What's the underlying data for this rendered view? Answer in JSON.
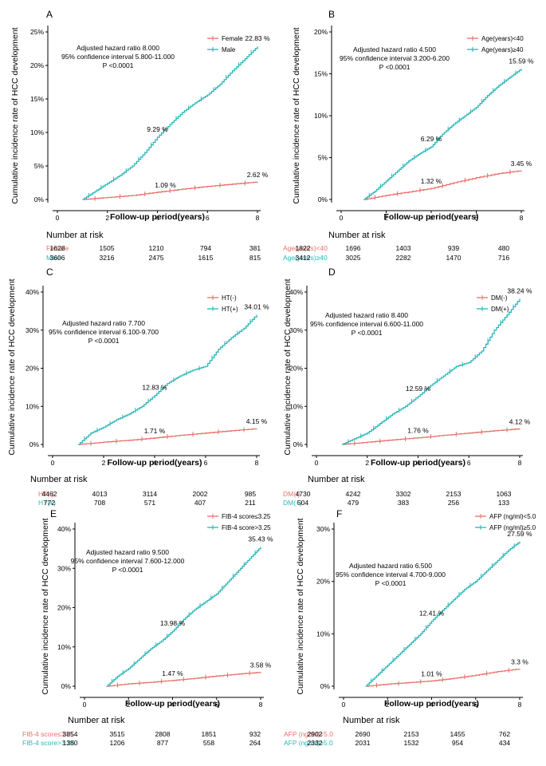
{
  "colors": {
    "series1": "#e8706a",
    "series2": "#2bb5b8",
    "axis": "#000000"
  },
  "chart_data": [
    {
      "type": "line",
      "panel_label": "A",
      "xlabel": "Follow-up period(years)",
      "ylabel": "Cumulative incidence rate of HCC development",
      "xlim": [
        0,
        8
      ],
      "ylim": [
        0,
        25
      ],
      "xticks": [
        "0",
        "2",
        "4",
        "6",
        "8"
      ],
      "yticks": [
        "0%",
        "5%",
        "10%",
        "15%",
        "20%",
        "25%"
      ],
      "annotation": [
        "Adjusted hazard ratio 8.000",
        "95% confidence interval 5.800-11.000",
        "P <0.0001"
      ],
      "series": [
        {
          "name": "Female",
          "x": [
            1,
            2,
            3,
            4,
            5,
            6,
            7,
            8
          ],
          "values": [
            0,
            0.3,
            0.6,
            1.09,
            1.55,
            1.95,
            2.3,
            2.62
          ],
          "label_mid": "1.09 %",
          "label_end": "2.62 %"
        },
        {
          "name": "Male",
          "x": [
            1,
            1.5,
            2,
            2.5,
            3,
            3.5,
            4,
            4.5,
            5,
            5.5,
            6,
            6.5,
            7,
            7.5,
            8
          ],
          "values": [
            0,
            1.2,
            2.4,
            3.6,
            5.0,
            7.0,
            9.29,
            11.2,
            13.0,
            14.4,
            15.6,
            17.2,
            19.2,
            21.0,
            22.83
          ],
          "label_mid": "9.29 %",
          "label_end": "22.83 %"
        }
      ],
      "risk_table": {
        "title": "Number at risk",
        "rows": [
          {
            "name": "Female",
            "values": [
              "1628",
              "1505",
              "1210",
              "794",
              "381"
            ]
          },
          {
            "name": "Male",
            "values": [
              "3606",
              "3216",
              "2475",
              "1615",
              "815"
            ]
          }
        ]
      }
    },
    {
      "type": "line",
      "panel_label": "B",
      "xlabel": "Follow-up period(years)",
      "ylabel": "Cumulative incidence rate of HCC development",
      "xlim": [
        0,
        8
      ],
      "ylim": [
        0,
        20
      ],
      "xticks": [
        "0",
        "2",
        "4",
        "6",
        "8"
      ],
      "yticks": [
        "0%",
        "5%",
        "10%",
        "15%",
        "20%"
      ],
      "annotation": [
        "Adjusted hazard ratio 4.500",
        "95% confidence interval 3.200-6.200",
        "P <0.0001"
      ],
      "series": [
        {
          "name": "Age(years)<40",
          "x": [
            1,
            2,
            3,
            4,
            5,
            6,
            7,
            8
          ],
          "values": [
            0,
            0.5,
            0.9,
            1.32,
            2.0,
            2.6,
            3.1,
            3.45
          ],
          "label_mid": "1.32 %",
          "label_end": "3.45 %"
        },
        {
          "name": "Age(years)≥40",
          "x": [
            1,
            1.5,
            2,
            2.5,
            3,
            3.5,
            4,
            4.5,
            5,
            5.5,
            6,
            6.5,
            7,
            7.5,
            8
          ],
          "values": [
            0,
            1.0,
            2.2,
            3.4,
            4.6,
            5.5,
            6.29,
            7.8,
            9.0,
            10.0,
            11.0,
            12.4,
            13.6,
            14.6,
            15.59
          ],
          "label_mid": "6.29 %",
          "label_end": "15.59 %"
        }
      ],
      "risk_table": {
        "title": "Number at risk",
        "rows": [
          {
            "name": "Age(years)<40",
            "values": [
              "1822",
              "1696",
              "1403",
              "939",
              "480"
            ]
          },
          {
            "name": "Age(years)≥40",
            "values": [
              "3412",
              "3025",
              "2282",
              "1470",
              "716"
            ]
          }
        ]
      }
    },
    {
      "type": "line",
      "panel_label": "C",
      "xlabel": "Follow-up period(years)",
      "ylabel": "Cumulative incidence rate of HCC development",
      "xlim": [
        0,
        8
      ],
      "ylim": [
        0,
        40
      ],
      "xticks": [
        "0",
        "2",
        "4",
        "6",
        "8"
      ],
      "yticks": [
        "0%",
        "10%",
        "20%",
        "30%",
        "40%"
      ],
      "annotation": [
        "Adjusted hazard ratio 7.700",
        "95% confidence interval 6.100-9.700",
        "P <0.0001"
      ],
      "series": [
        {
          "name": "HT(-)",
          "x": [
            1,
            2,
            3,
            4,
            5,
            6,
            7,
            8
          ],
          "values": [
            0,
            0.6,
            1.1,
            1.71,
            2.4,
            3.0,
            3.6,
            4.15
          ],
          "label_mid": "1.71 %",
          "label_end": "4.15 %"
        },
        {
          "name": "HT(+)",
          "x": [
            1,
            1.5,
            2,
            2.5,
            3,
            3.5,
            4,
            4.5,
            5,
            5.5,
            6,
            6.5,
            7,
            7.5,
            8
          ],
          "values": [
            0,
            3.0,
            4.5,
            6.5,
            8.0,
            10.0,
            12.83,
            16.0,
            18.0,
            19.5,
            20.5,
            25.0,
            28.0,
            30.5,
            34.01
          ],
          "label_mid": "12.83 %",
          "label_end": "34.01 %"
        }
      ],
      "risk_table": {
        "title": "Number at risk",
        "rows": [
          {
            "name": "HT(-)",
            "values": [
              "4462",
              "4013",
              "3114",
              "2002",
              "985"
            ]
          },
          {
            "name": "HT(+)",
            "values": [
              "772",
              "708",
              "571",
              "407",
              "211"
            ]
          }
        ]
      }
    },
    {
      "type": "line",
      "panel_label": "D",
      "xlabel": "Follow-up period(years)",
      "ylabel": "Cumulative incidence rate of HCC development",
      "xlim": [
        0,
        8
      ],
      "ylim": [
        0,
        40
      ],
      "xticks": [
        "0",
        "2",
        "4",
        "6",
        "8"
      ],
      "yticks": [
        "0%",
        "10%",
        "20%",
        "30%",
        "40%"
      ],
      "annotation": [
        "Adjusted hazard ratio 8.400",
        "95% confidence interval 6.600-11.000",
        "P <0.0001"
      ],
      "series": [
        {
          "name": "DM(-)",
          "x": [
            1,
            2,
            3,
            4,
            5,
            6,
            7,
            8
          ],
          "values": [
            0,
            0.6,
            1.2,
            1.76,
            2.4,
            3.0,
            3.6,
            4.12
          ],
          "label_mid": "1.76 %",
          "label_end": "4.12 %"
        },
        {
          "name": "DM(+)",
          "x": [
            1,
            1.5,
            2,
            2.5,
            3,
            3.5,
            4,
            4.5,
            5,
            5.5,
            6,
            6.5,
            7,
            7.5,
            8
          ],
          "values": [
            0,
            1.5,
            3.0,
            5.5,
            8.0,
            10.0,
            12.59,
            15.5,
            18.0,
            20.5,
            21.5,
            24.5,
            30.0,
            34.0,
            38.24
          ],
          "label_mid": "12.59 %",
          "label_end": "38.24 %"
        }
      ],
      "risk_table": {
        "title": "Number at risk",
        "rows": [
          {
            "name": "DM(-)",
            "values": [
              "4730",
              "4242",
              "3302",
              "2153",
              "1063"
            ]
          },
          {
            "name": "DM(+)",
            "values": [
              "504",
              "479",
              "383",
              "256",
              "133"
            ]
          }
        ]
      }
    },
    {
      "type": "line",
      "panel_label": "E",
      "xlabel": "Follow-up period(years)",
      "ylabel": "Cumulative incidence rate of HCC development",
      "xlim": [
        0,
        8
      ],
      "ylim": [
        0,
        40
      ],
      "xticks": [
        "0",
        "2",
        "4",
        "6",
        "8"
      ],
      "yticks": [
        "0%",
        "10%",
        "20%",
        "30%",
        "40%"
      ],
      "annotation": [
        "Adjusted hazard ratio 9.500",
        "95% confidence interval 7.600-12.000",
        "P <0.0001"
      ],
      "series": [
        {
          "name": "FIB-4 score≤3.25",
          "x": [
            1,
            2,
            3,
            4,
            5,
            6,
            7,
            8
          ],
          "values": [
            0,
            0.6,
            1.0,
            1.47,
            2.0,
            2.6,
            3.1,
            3.58
          ],
          "label_mid": "1.47 %",
          "label_end": "3.58 %"
        },
        {
          "name": "FIB-4 score>3.25",
          "x": [
            1,
            1.5,
            2,
            2.5,
            3,
            3.5,
            4,
            4.5,
            5,
            5.5,
            6,
            6.5,
            7,
            7.5,
            8
          ],
          "values": [
            0,
            2.5,
            4.5,
            7.0,
            9.5,
            11.5,
            13.98,
            17.0,
            19.5,
            21.5,
            23.5,
            26.5,
            29.5,
            32.5,
            35.43
          ],
          "label_mid": "13.98 %",
          "label_end": "35.43 %"
        }
      ],
      "risk_table": {
        "title": "Number at risk",
        "rows": [
          {
            "name": "FIB-4 score≤3.25",
            "values": [
              "3854",
              "3515",
              "2808",
              "1851",
              "932"
            ]
          },
          {
            "name": "FIB-4 score>3.25",
            "values": [
              "1380",
              "1206",
              "877",
              "558",
              "264"
            ]
          }
        ]
      }
    },
    {
      "type": "line",
      "panel_label": "F",
      "xlabel": "Follow-up period(years)",
      "ylabel": "Cumulative incidence rate of HCC development",
      "xlim": [
        0,
        8
      ],
      "ylim": [
        0,
        30
      ],
      "xticks": [
        "0",
        "2",
        "4",
        "6",
        "8"
      ],
      "yticks": [
        "0%",
        "10%",
        "20%",
        "30%"
      ],
      "annotation": [
        "Adjusted hazard ratio 6.500",
        "95% confidence interval 4.700-9.000",
        "P <0.0001"
      ],
      "series": [
        {
          "name": "AFP (ng/ml)<5.0",
          "x": [
            1,
            2,
            3,
            4,
            5,
            6,
            7,
            8
          ],
          "values": [
            0,
            0.4,
            0.7,
            1.01,
            1.5,
            2.1,
            2.8,
            3.3
          ],
          "label_mid": "1.01 %",
          "label_end": "3.3 %"
        },
        {
          "name": "AFP (ng/ml)≥5.0",
          "x": [
            1,
            1.5,
            2,
            2.5,
            3,
            3.5,
            4,
            4.5,
            5,
            5.5,
            6,
            6.5,
            7,
            7.5,
            8
          ],
          "values": [
            0,
            2.0,
            4.0,
            6.0,
            8.0,
            10.0,
            12.41,
            14.5,
            16.5,
            18.5,
            20.0,
            22.0,
            24.0,
            26.0,
            27.59
          ],
          "label_mid": "12.41 %",
          "label_end": "27.59 %"
        }
      ],
      "risk_table": {
        "title": "Number at risk",
        "rows": [
          {
            "name": "AFP (ng/ml)<5.0",
            "values": [
              "2902",
              "2690",
              "2153",
              "1455",
              "762"
            ]
          },
          {
            "name": "AFP (ng/ml)≥5.0",
            "values": [
              "2332",
              "2031",
              "1532",
              "954",
              "434"
            ]
          }
        ]
      }
    }
  ]
}
